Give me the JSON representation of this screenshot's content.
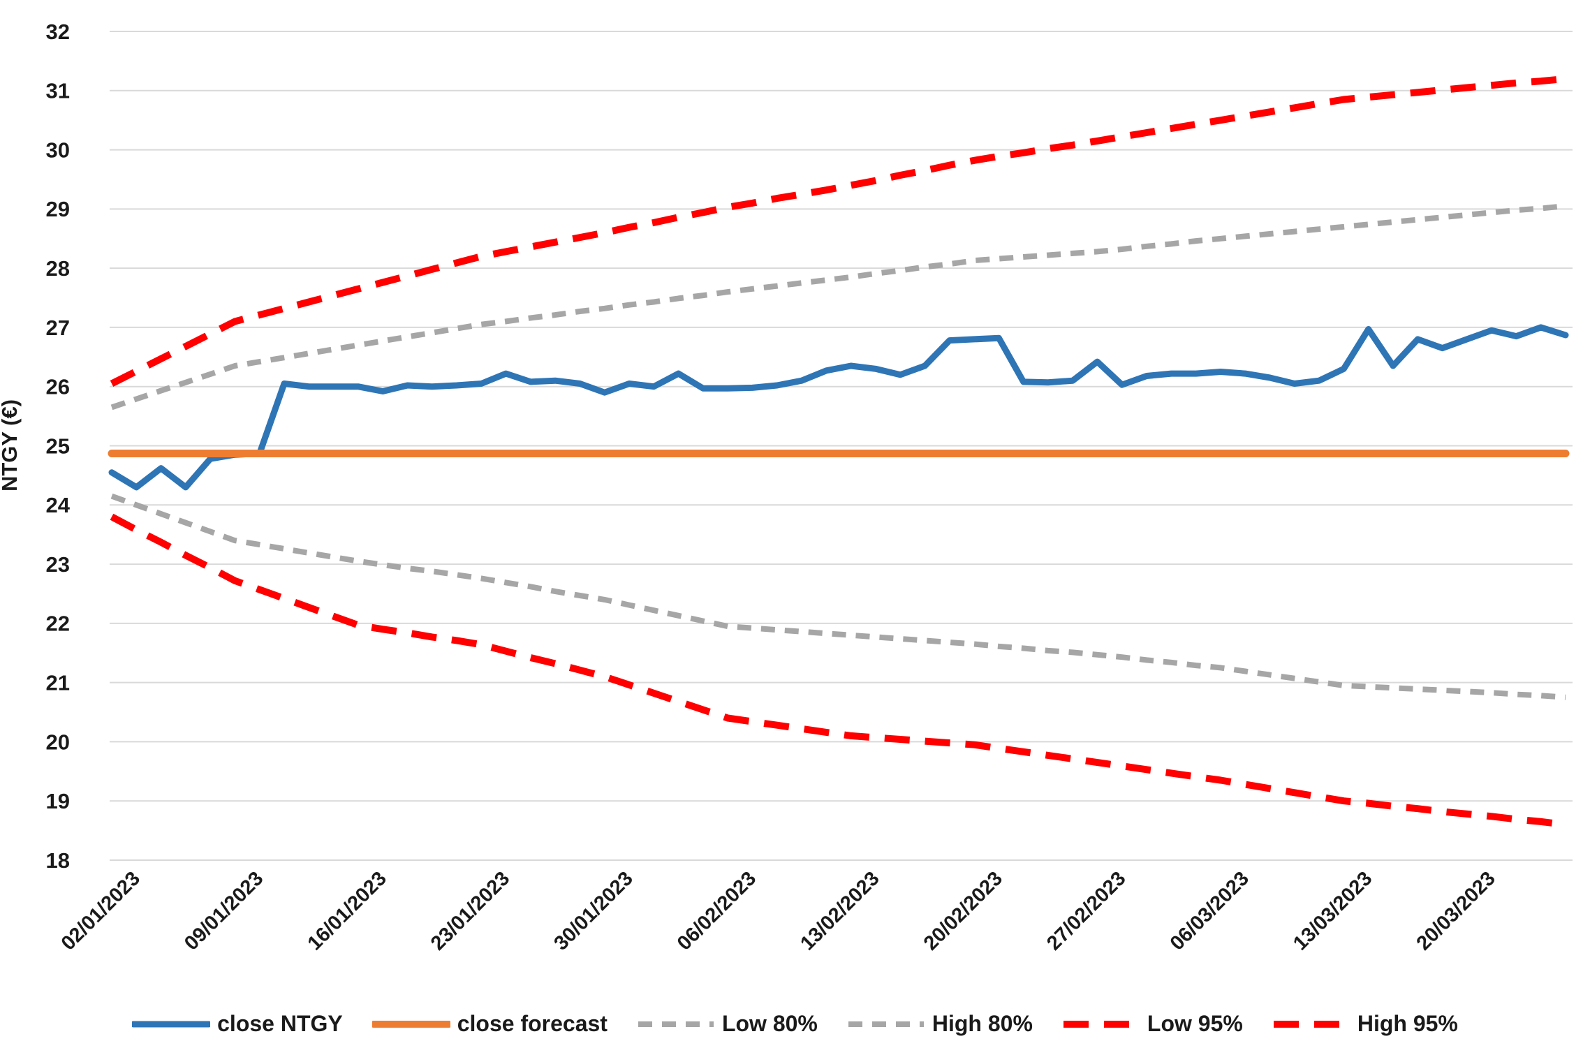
{
  "chart_data": {
    "type": "line",
    "title": "",
    "xlabel": "",
    "ylabel": "NTGY (€)",
    "ylim": [
      18,
      32
    ],
    "ytick_step": 1,
    "grid": "horizontal",
    "legend_position": "bottom",
    "colors": {
      "close_ntgy": "#2E75B6",
      "close_forecast": "#ED7D31",
      "band_80": "#A6A6A6",
      "band_95": "#FF0000",
      "gridline": "#D9D9D9",
      "text": "#1a1a1a"
    },
    "x_tick_every": 5,
    "x_tick_labels": [
      "02/01/2023",
      "09/01/2023",
      "16/01/2023",
      "23/01/2023",
      "30/01/2023",
      "06/02/2023",
      "13/02/2023",
      "20/02/2023",
      "27/02/2023",
      "06/03/2023",
      "13/03/2023",
      "20/03/2023"
    ],
    "categories": [
      "02/01/2023",
      "03/01/2023",
      "04/01/2023",
      "05/01/2023",
      "06/01/2023",
      "09/01/2023",
      "10/01/2023",
      "11/01/2023",
      "12/01/2023",
      "13/01/2023",
      "16/01/2023",
      "17/01/2023",
      "18/01/2023",
      "19/01/2023",
      "20/01/2023",
      "23/01/2023",
      "24/01/2023",
      "25/01/2023",
      "26/01/2023",
      "27/01/2023",
      "30/01/2023",
      "31/01/2023",
      "01/02/2023",
      "02/02/2023",
      "03/02/2023",
      "06/02/2023",
      "07/02/2023",
      "08/02/2023",
      "09/02/2023",
      "10/02/2023",
      "13/02/2023",
      "14/02/2023",
      "15/02/2023",
      "16/02/2023",
      "17/02/2023",
      "20/02/2023",
      "21/02/2023",
      "22/02/2023",
      "23/02/2023",
      "24/02/2023",
      "27/02/2023",
      "28/02/2023",
      "01/03/2023",
      "02/03/2023",
      "03/03/2023",
      "06/03/2023",
      "07/03/2023",
      "08/03/2023",
      "09/03/2023",
      "10/03/2023",
      "13/03/2023",
      "14/03/2023",
      "15/03/2023",
      "16/03/2023",
      "17/03/2023",
      "20/03/2023",
      "21/03/2023",
      "22/03/2023",
      "23/03/2023",
      "24/03/2023"
    ],
    "series": [
      {
        "name": "Low 80%",
        "color": "#A6A6A6",
        "style": "dash",
        "dasharray": "20 14",
        "width": 8,
        "values": [
          24.15,
          24.0,
          23.85,
          23.7,
          23.55,
          23.4,
          23.33,
          23.26,
          23.19,
          23.12,
          23.05,
          22.99,
          22.93,
          22.88,
          22.82,
          22.76,
          22.69,
          22.62,
          22.54,
          22.47,
          22.4,
          22.31,
          22.22,
          22.13,
          22.04,
          21.95,
          21.92,
          21.89,
          21.86,
          21.83,
          21.8,
          21.77,
          21.74,
          21.71,
          21.68,
          21.65,
          21.61,
          21.58,
          21.54,
          21.51,
          21.47,
          21.43,
          21.38,
          21.34,
          21.29,
          21.25,
          21.19,
          21.13,
          21.07,
          21.01,
          20.95,
          20.93,
          20.91,
          20.89,
          20.87,
          20.85,
          20.83,
          20.8,
          20.78,
          20.75
        ]
      },
      {
        "name": "High 80%",
        "color": "#A6A6A6",
        "style": "dash",
        "dasharray": "20 14",
        "width": 8,
        "values": [
          25.65,
          25.79,
          25.93,
          26.07,
          26.21,
          26.35,
          26.42,
          26.49,
          26.56,
          26.63,
          26.7,
          26.77,
          26.84,
          26.91,
          26.98,
          27.05,
          27.1,
          27.16,
          27.21,
          27.27,
          27.32,
          27.38,
          27.43,
          27.49,
          27.54,
          27.6,
          27.65,
          27.7,
          27.75,
          27.8,
          27.85,
          27.91,
          27.96,
          28.02,
          28.07,
          28.13,
          28.16,
          28.19,
          28.22,
          28.25,
          28.28,
          28.32,
          28.37,
          28.41,
          28.46,
          28.5,
          28.54,
          28.58,
          28.62,
          28.66,
          28.7,
          28.74,
          28.78,
          28.82,
          28.86,
          28.9,
          28.94,
          28.98,
          29.01,
          29.05
        ]
      },
      {
        "name": "Low 95%",
        "color": "#FF0000",
        "style": "dash",
        "dasharray": "36 22",
        "width": 10,
        "values": [
          23.8,
          23.58,
          23.37,
          23.15,
          22.94,
          22.72,
          22.57,
          22.42,
          22.27,
          22.12,
          21.97,
          21.9,
          21.84,
          21.77,
          21.71,
          21.64,
          21.53,
          21.42,
          21.32,
          21.21,
          21.1,
          20.96,
          20.82,
          20.68,
          20.54,
          20.4,
          20.34,
          20.28,
          20.22,
          20.16,
          20.1,
          20.07,
          20.04,
          20.01,
          19.98,
          19.95,
          19.89,
          19.83,
          19.77,
          19.71,
          19.65,
          19.59,
          19.53,
          19.47,
          19.41,
          19.35,
          19.28,
          19.21,
          19.14,
          19.07,
          19.0,
          18.96,
          18.91,
          18.87,
          18.82,
          18.78,
          18.74,
          18.69,
          18.65,
          18.6
        ]
      },
      {
        "name": "High 95%",
        "color": "#FF0000",
        "style": "dash",
        "dasharray": "36 22",
        "width": 10,
        "values": [
          26.05,
          26.26,
          26.47,
          26.68,
          26.89,
          27.1,
          27.21,
          27.32,
          27.43,
          27.54,
          27.65,
          27.76,
          27.87,
          27.98,
          28.09,
          28.2,
          28.28,
          28.36,
          28.44,
          28.52,
          28.6,
          28.69,
          28.77,
          28.86,
          28.94,
          29.03,
          29.1,
          29.18,
          29.25,
          29.32,
          29.4,
          29.48,
          29.57,
          29.65,
          29.74,
          29.82,
          29.89,
          29.95,
          30.02,
          30.08,
          30.15,
          30.22,
          30.29,
          30.36,
          30.43,
          30.5,
          30.57,
          30.64,
          30.71,
          30.78,
          30.85,
          30.89,
          30.93,
          30.97,
          31.01,
          31.05,
          31.09,
          31.13,
          31.16,
          31.2
        ]
      },
      {
        "name": "close NTGY",
        "color": "#2E75B6",
        "style": "solid",
        "dasharray": "",
        "width": 9,
        "values": [
          24.55,
          24.3,
          24.62,
          24.3,
          24.78,
          24.85,
          24.87,
          26.05,
          26.0,
          26.0,
          26.0,
          25.92,
          26.02,
          26.0,
          26.02,
          26.05,
          26.22,
          26.08,
          26.1,
          26.05,
          25.9,
          26.05,
          26.0,
          26.22,
          25.97,
          25.97,
          25.98,
          26.02,
          26.1,
          26.27,
          26.35,
          26.3,
          26.2,
          26.35,
          26.78,
          26.8,
          26.82,
          26.08,
          26.07,
          26.1,
          26.42,
          26.03,
          26.18,
          26.22,
          26.22,
          26.25,
          26.22,
          26.15,
          26.05,
          26.1,
          26.3,
          26.97,
          26.35,
          26.8,
          26.65,
          26.8,
          26.95,
          26.85,
          27.0,
          26.87
        ]
      },
      {
        "name": "close forecast",
        "color": "#ED7D31",
        "style": "solid",
        "dasharray": "",
        "width": 11,
        "values": [
          24.87,
          24.87,
          24.87,
          24.87,
          24.87,
          24.87,
          24.87,
          24.87,
          24.87,
          24.87,
          24.87,
          24.87,
          24.87,
          24.87,
          24.87,
          24.87,
          24.87,
          24.87,
          24.87,
          24.87,
          24.87,
          24.87,
          24.87,
          24.87,
          24.87,
          24.87,
          24.87,
          24.87,
          24.87,
          24.87,
          24.87,
          24.87,
          24.87,
          24.87,
          24.87,
          24.87,
          24.87,
          24.87,
          24.87,
          24.87,
          24.87,
          24.87,
          24.87,
          24.87,
          24.87,
          24.87,
          24.87,
          24.87,
          24.87,
          24.87,
          24.87,
          24.87,
          24.87,
          24.87,
          24.87,
          24.87,
          24.87,
          24.87,
          24.87,
          24.87
        ]
      }
    ],
    "legend_order": [
      "close NTGY",
      "close forecast",
      "Low 80%",
      "High 80%",
      "Low 95%",
      "High 95%"
    ]
  }
}
